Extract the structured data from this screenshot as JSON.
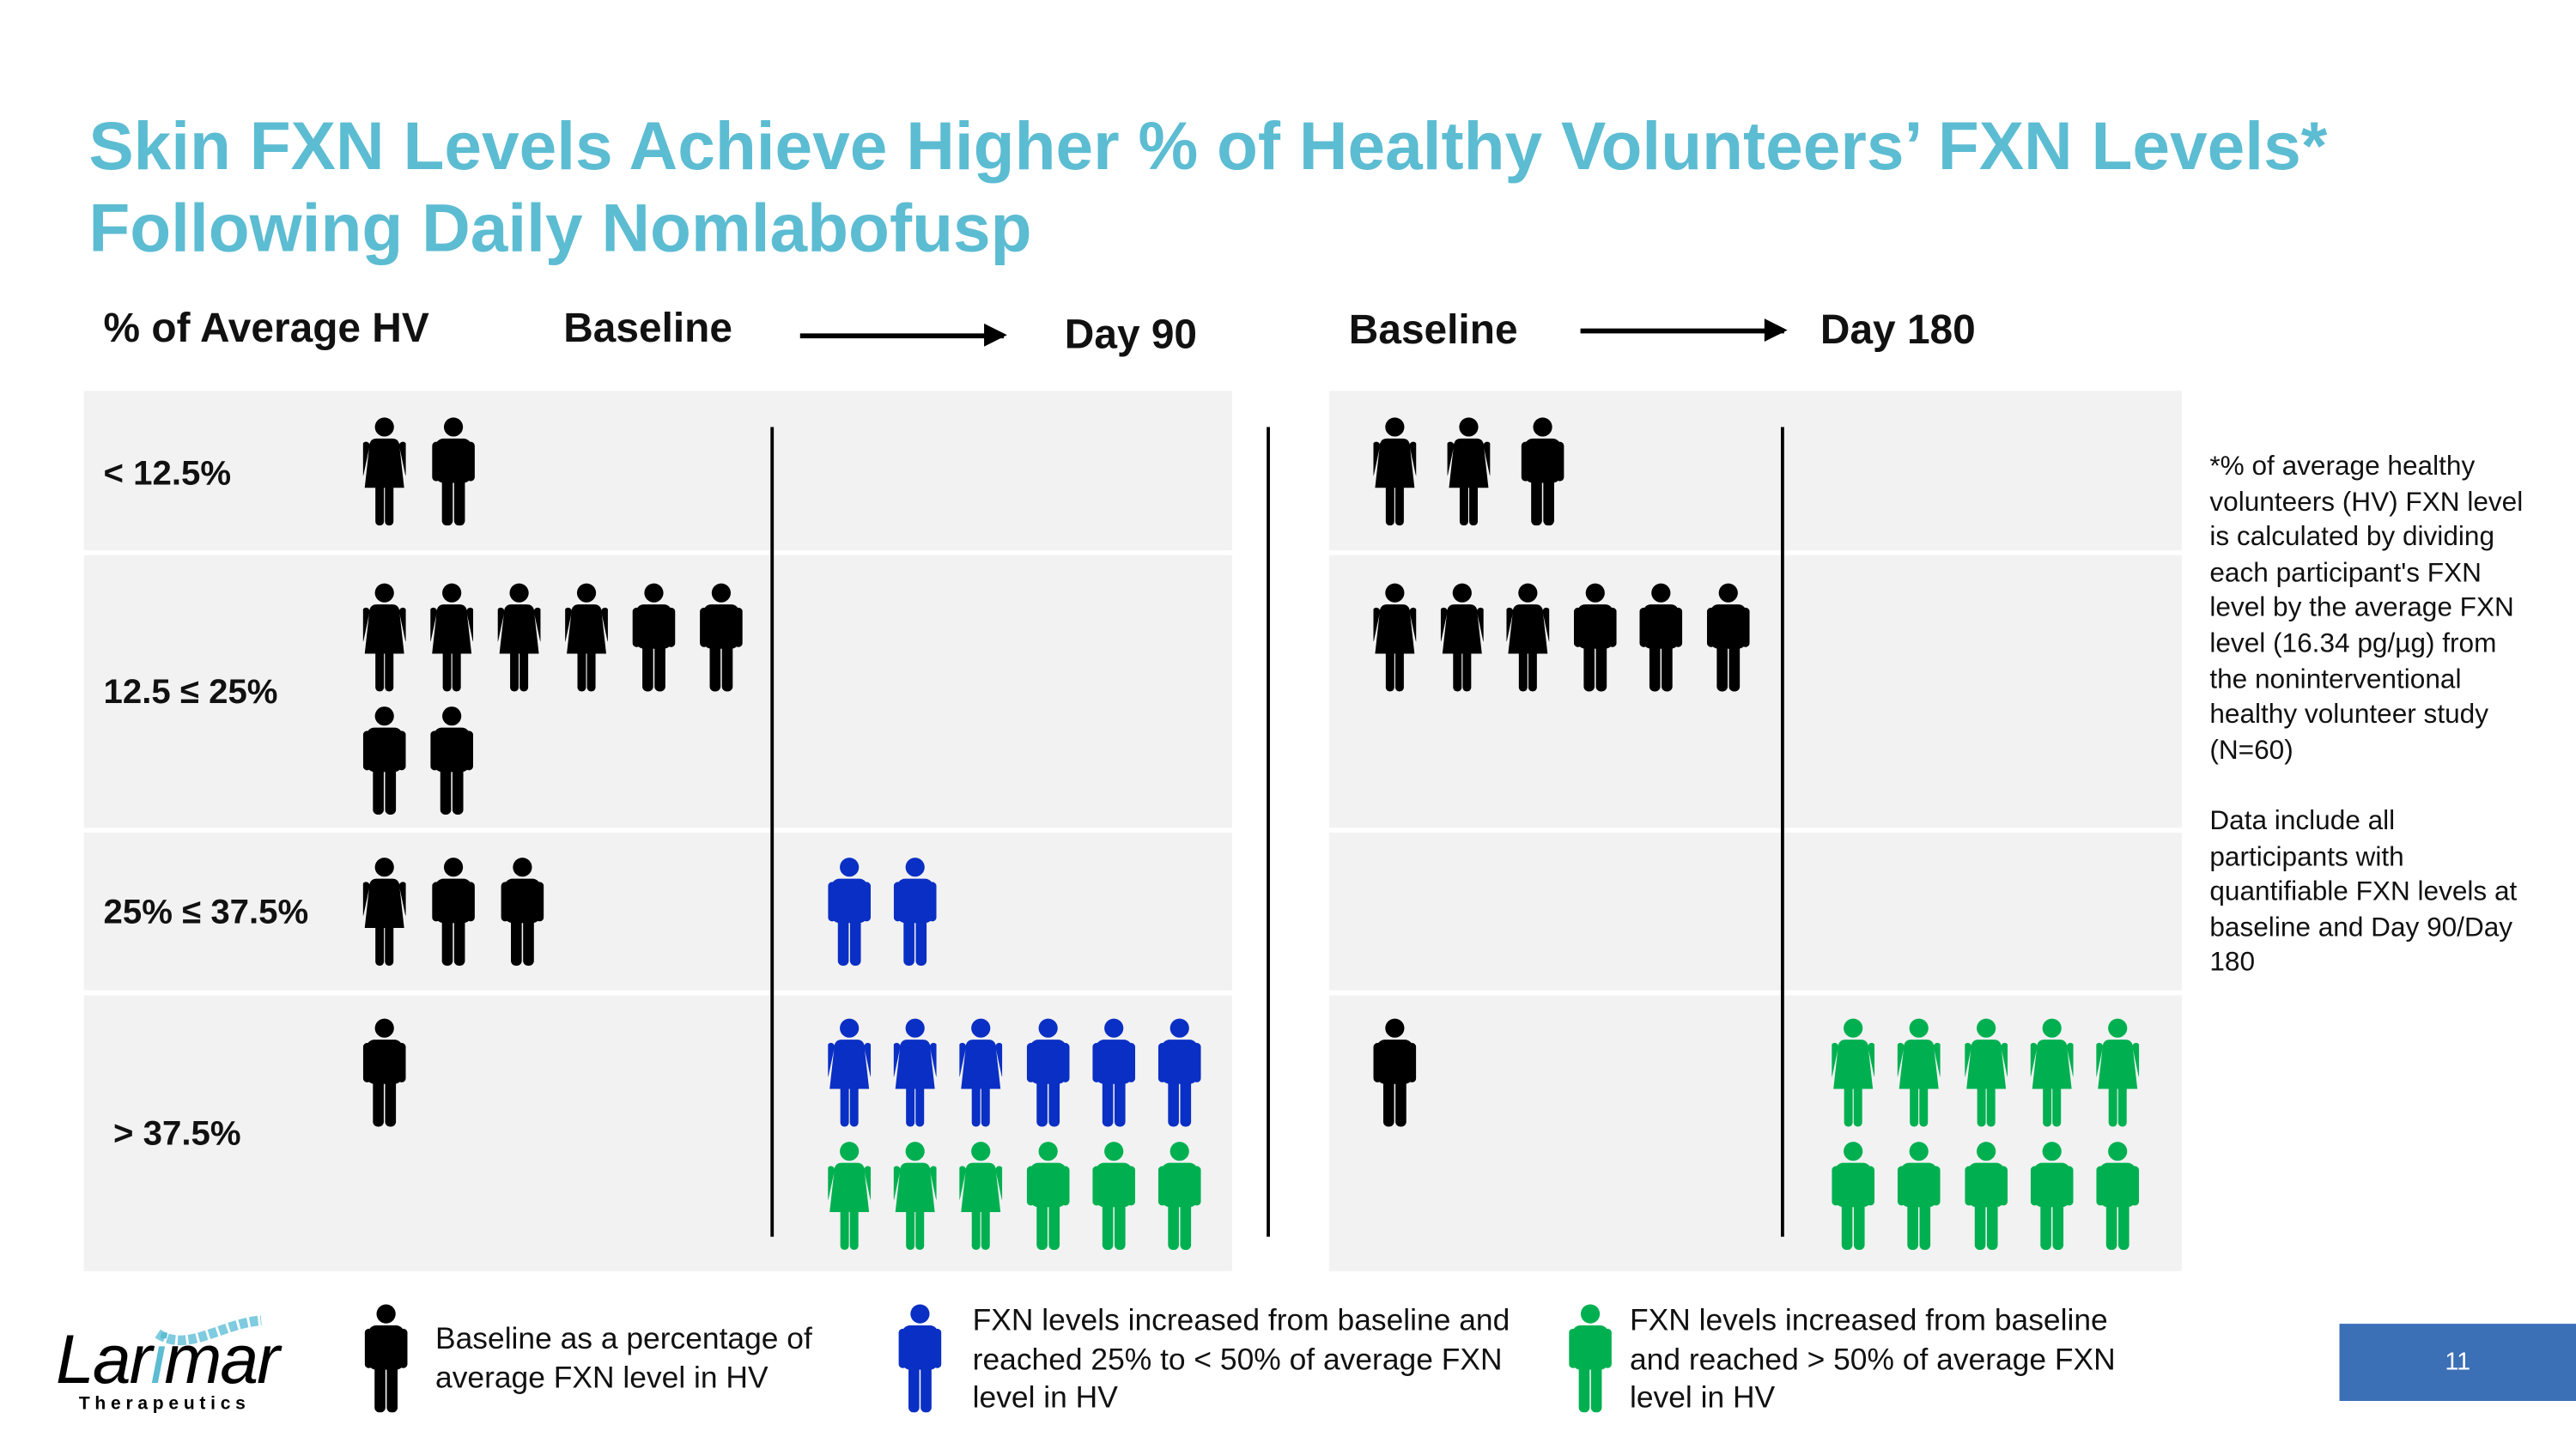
{
  "title": {
    "line1": "Skin FXN Levels Achieve Higher % of Healthy Volunteers’ FXN Levels*",
    "line2": "Following Daily Nomlabofusp"
  },
  "colors": {
    "title": "#5cbcd2",
    "baseline": "#000000",
    "increased_25_50": "#0a2fc4",
    "increased_gt_50": "#00b050",
    "panel_bg": "#f2f2f2",
    "page_box": "#3b6fb6"
  },
  "header": {
    "row_label": "% of Average HV",
    "panel_day90": {
      "from": "Baseline",
      "to": "Day 90"
    },
    "panel_day180": {
      "from": "Baseline",
      "to": "Day 180"
    }
  },
  "rows": [
    {
      "label": "< 12.5%",
      "day90": {
        "baseline": [
          [
            "F",
            "baseline"
          ],
          [
            "M",
            "baseline"
          ]
        ],
        "followup": []
      },
      "day180": {
        "baseline": [
          [
            "F",
            "baseline"
          ],
          [
            "F",
            "baseline"
          ],
          [
            "M",
            "baseline"
          ]
        ],
        "followup": []
      }
    },
    {
      "label": "12.5 ≤ 25%",
      "day90": {
        "baseline": [
          [
            "F",
            "baseline"
          ],
          [
            "F",
            "baseline"
          ],
          [
            "F",
            "baseline"
          ],
          [
            "F",
            "baseline"
          ],
          [
            "M",
            "baseline"
          ],
          [
            "M",
            "baseline"
          ],
          [
            "M",
            "baseline"
          ],
          [
            "M",
            "baseline"
          ]
        ],
        "followup": []
      },
      "day180": {
        "baseline": [
          [
            "F",
            "baseline"
          ],
          [
            "F",
            "baseline"
          ],
          [
            "F",
            "baseline"
          ],
          [
            "M",
            "baseline"
          ],
          [
            "M",
            "baseline"
          ],
          [
            "M",
            "baseline"
          ]
        ],
        "followup": []
      }
    },
    {
      "label": "25% ≤ 37.5%",
      "day90": {
        "baseline": [
          [
            "F",
            "baseline"
          ],
          [
            "M",
            "baseline"
          ],
          [
            "M",
            "baseline"
          ]
        ],
        "followup": [
          [
            "M",
            "increased_25_50"
          ],
          [
            "M",
            "increased_25_50"
          ]
        ]
      },
      "day180": {
        "baseline": [],
        "followup": []
      }
    },
    {
      "label": "> 37.5%",
      "day90": {
        "baseline": [
          [
            "M",
            "baseline"
          ]
        ],
        "followup": [
          [
            "F",
            "increased_25_50"
          ],
          [
            "F",
            "increased_25_50"
          ],
          [
            "F",
            "increased_25_50"
          ],
          [
            "M",
            "increased_25_50"
          ],
          [
            "M",
            "increased_25_50"
          ],
          [
            "M",
            "increased_25_50"
          ],
          [
            "F",
            "increased_gt_50"
          ],
          [
            "F",
            "increased_gt_50"
          ],
          [
            "F",
            "increased_gt_50"
          ],
          [
            "M",
            "increased_gt_50"
          ],
          [
            "M",
            "increased_gt_50"
          ],
          [
            "M",
            "increased_gt_50"
          ]
        ]
      },
      "day180": {
        "baseline": [
          [
            "M",
            "baseline"
          ]
        ],
        "followup": [
          [
            "F",
            "increased_gt_50"
          ],
          [
            "F",
            "increased_gt_50"
          ],
          [
            "F",
            "increased_gt_50"
          ],
          [
            "F",
            "increased_gt_50"
          ],
          [
            "F",
            "increased_gt_50"
          ],
          [
            "M",
            "increased_gt_50"
          ],
          [
            "M",
            "increased_gt_50"
          ],
          [
            "M",
            "increased_gt_50"
          ],
          [
            "M",
            "increased_gt_50"
          ],
          [
            "M",
            "increased_gt_50"
          ]
        ]
      }
    }
  ],
  "footnote": {
    "definition": "*% of average healthy volunteers (HV) FXN level is calculated by dividing each participant's FXN level by the average FXN level (16.34 pg/µg) from the noninterventional healthy volunteer study (N=60)",
    "data_note": "Data include all participants with quantifiable FXN levels at baseline and Day 90/Day 180"
  },
  "legend": [
    {
      "group": "baseline",
      "icon": "male-person-icon",
      "lines": [
        "Baseline as a percentage of",
        "average FXN level in HV"
      ]
    },
    {
      "group": "increased_25_50",
      "icon": "male-person-icon",
      "lines": [
        "FXN levels increased from baseline and",
        "reached 25% to < 50% of average FXN",
        "level in HV"
      ]
    },
    {
      "group": "increased_gt_50",
      "icon": "male-person-icon",
      "lines": [
        "FXN levels increased from baseline",
        "and reached > 50% of average FXN",
        "level in HV"
      ]
    }
  ],
  "logo": {
    "name": "Larimar",
    "sub": "Therapeutics"
  },
  "page_number": "11"
}
